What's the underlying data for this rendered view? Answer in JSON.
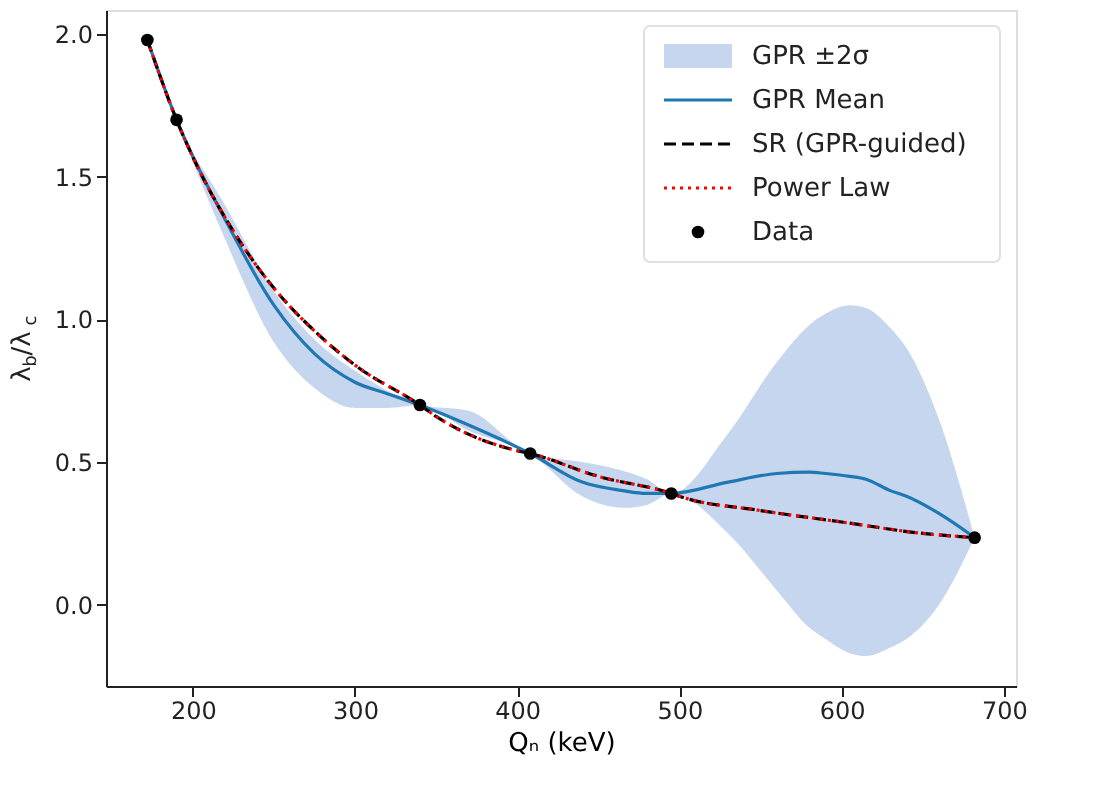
{
  "chart_data": {
    "type": "line",
    "xlabel": "Qₙ (keV)",
    "ylabel": "λ$_{b}$/λ$_{c}$",
    "xlim": [
      146.5,
      707.5
    ],
    "ylim": [
      -0.285,
      2.085
    ],
    "xticks": [
      200,
      300,
      400,
      500,
      600,
      700
    ],
    "yticks": [
      {
        "value": 0,
        "label": "0.0"
      },
      0.5,
      {
        "value": 1,
        "label": "1.0"
      },
      1.5,
      {
        "value": 2,
        "label": "2.0"
      }
    ],
    "grid": false,
    "legend": "top right",
    "series": [
      {
        "name": "GPR ±2σ",
        "type": "area",
        "color": "#c6d6ee"
      },
      {
        "name": "GPR Mean",
        "color": "#1f77b4",
        "line_style": "solid",
        "x": [
          172,
          190,
          220,
          250,
          275,
          300,
          320,
          340,
          370,
          408,
          440,
          465,
          480,
          495,
          530,
          560,
          580,
          590,
          605,
          615,
          630,
          640,
          660,
          682
        ],
        "values": [
          1.98,
          1.7,
          1.35,
          1.05,
          0.88,
          0.78,
          0.74,
          0.7,
          0.63,
          0.53,
          0.43,
          0.4,
          0.39,
          0.39,
          0.43,
          0.46,
          0.465,
          0.46,
          0.45,
          0.44,
          0.4,
          0.38,
          0.32,
          0.235
        ],
        "lower": [
          1.98,
          1.7,
          1.28,
          0.92,
          0.76,
          0.69,
          0.69,
          0.7,
          0.61,
          0.53,
          0.38,
          0.34,
          0.35,
          0.39,
          0.25,
          0.05,
          -0.08,
          -0.12,
          -0.17,
          -0.18,
          -0.15,
          -0.12,
          0.0,
          0.235
        ],
        "upper": [
          1.98,
          1.7,
          1.4,
          1.1,
          0.93,
          0.82,
          0.75,
          0.7,
          0.68,
          0.53,
          0.5,
          0.47,
          0.44,
          0.39,
          0.6,
          0.85,
          0.98,
          1.02,
          1.05,
          1.04,
          0.97,
          0.9,
          0.65,
          0.235
        ]
      },
      {
        "name": "SR (GPR-guided)",
        "type": "line",
        "color": "#000000",
        "line_style": "dashed",
        "x": [
          172,
          190,
          200,
          225,
          250,
          275,
          300,
          340,
          350,
          400,
          408,
          450,
          495,
          500,
          550,
          600,
          650,
          682
        ],
        "values": [
          1.98,
          1.7,
          1.57,
          1.31,
          1.11,
          0.96,
          0.84,
          0.7,
          0.66,
          0.54,
          0.53,
          0.45,
          0.39,
          0.38,
          0.33,
          0.29,
          0.25,
          0.235
        ]
      },
      {
        "name": "Power Law",
        "type": "line",
        "color": "#ff0000",
        "line_style": "dotted",
        "x": [
          172,
          190,
          200,
          225,
          250,
          275,
          300,
          340,
          350,
          400,
          408,
          450,
          495,
          500,
          550,
          600,
          650,
          682
        ],
        "values": [
          1.98,
          1.7,
          1.57,
          1.31,
          1.11,
          0.96,
          0.84,
          0.7,
          0.66,
          0.54,
          0.53,
          0.45,
          0.39,
          0.38,
          0.33,
          0.29,
          0.25,
          0.235
        ]
      },
      {
        "name": "Data",
        "type": "scatter",
        "color": "#000000",
        "marker": "circle",
        "x": [
          172,
          190,
          340,
          408,
          495,
          682
        ],
        "values": [
          1.98,
          1.7,
          0.7,
          0.53,
          0.39,
          0.235
        ]
      }
    ]
  }
}
